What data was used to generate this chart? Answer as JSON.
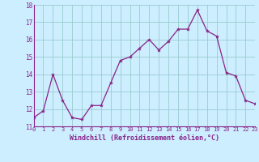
{
  "x": [
    0,
    1,
    2,
    3,
    4,
    5,
    6,
    7,
    8,
    9,
    10,
    11,
    12,
    13,
    14,
    15,
    16,
    17,
    18,
    19,
    20,
    21,
    22,
    23
  ],
  "y": [
    11.5,
    11.9,
    14.0,
    12.5,
    11.5,
    11.4,
    12.2,
    12.2,
    13.5,
    14.8,
    15.0,
    15.5,
    16.0,
    15.4,
    15.9,
    16.6,
    16.6,
    17.7,
    16.5,
    16.2,
    14.1,
    13.9,
    12.5,
    12.3
  ],
  "line_color": "#882288",
  "marker_color": "#882288",
  "marker_size": 3,
  "bg_color": "#cceeff",
  "grid_color": "#99cccc",
  "xlabel": "Windchill (Refroidissement éolien,°C)",
  "xlabel_color": "#882288",
  "tick_color": "#882288",
  "label_color": "#882288",
  "ylim": [
    11,
    18
  ],
  "xlim": [
    0,
    23
  ],
  "yticks": [
    11,
    12,
    13,
    14,
    15,
    16,
    17,
    18
  ],
  "xticks": [
    0,
    1,
    2,
    3,
    4,
    5,
    6,
    7,
    8,
    9,
    10,
    11,
    12,
    13,
    14,
    15,
    16,
    17,
    18,
    19,
    20,
    21,
    22,
    23
  ],
  "xtick_labels": [
    "0",
    "1",
    "2",
    "3",
    "4",
    "5",
    "6",
    "7",
    "8",
    "9",
    "10",
    "11",
    "12",
    "13",
    "14",
    "15",
    "16",
    "17",
    "18",
    "19",
    "20",
    "21",
    "22",
    "23"
  ]
}
